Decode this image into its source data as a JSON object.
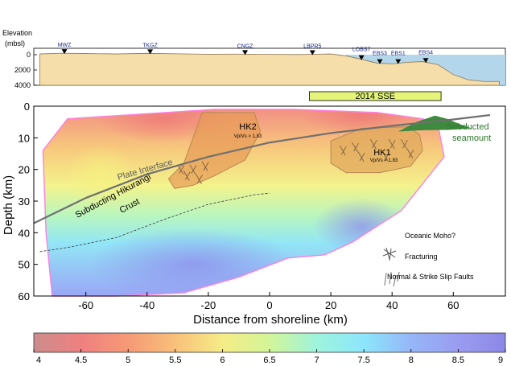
{
  "chart_data": [
    {
      "type": "area",
      "panel": "elevation-profile",
      "ylabel": "Elevation\n(mbsl)",
      "yticks": [
        0,
        2000,
        4000
      ],
      "ylim": [
        4200,
        -500
      ],
      "stations": [
        {
          "name": "MWZ",
          "x": -67
        },
        {
          "name": "TKGZ",
          "x": -39
        },
        {
          "name": "CNGZ",
          "x": -8
        },
        {
          "name": "LBPR5",
          "x": 14
        },
        {
          "name": "LOBS7",
          "x": 30
        },
        {
          "name": "EBS3",
          "x": 36
        },
        {
          "name": "EBS1",
          "x": 42
        },
        {
          "name": "EBS4",
          "x": 51
        }
      ],
      "profile": {
        "x": [
          -75,
          -68,
          -60,
          -50,
          -40,
          -30,
          -20,
          -10,
          0,
          10,
          20,
          25,
          30,
          35,
          40,
          45,
          50,
          55,
          60,
          65,
          70,
          75
        ],
        "y": [
          -100,
          -200,
          -150,
          -100,
          -180,
          -120,
          -60,
          -80,
          -40,
          -20,
          -100,
          150,
          600,
          1100,
          1200,
          1000,
          900,
          1300,
          2600,
          3300,
          3500,
          3500
        ]
      },
      "sse_label": "2014 SSE",
      "sse_range": [
        13,
        56
      ]
    },
    {
      "type": "heatmap",
      "panel": "vp-vs-cross-section",
      "xlabel": "Distance from shoreline (km)",
      "ylabel": "Depth (km)",
      "xticks": [
        -60,
        -40,
        -20,
        0,
        20,
        40,
        60
      ],
      "yticks": [
        0,
        10,
        20,
        30,
        40,
        50,
        60
      ],
      "xlim": [
        -77,
        77
      ],
      "ylim": [
        60,
        0
      ],
      "annotations": {
        "hk2": "HK2",
        "hk2_sub": "Vp/Vs > 1.83",
        "hk1": "HK1",
        "hk1_sub": "Vp/Vs > 1.83",
        "plate_interface": "Plate  Interface",
        "subducting_crust_1": "Subducting Hikurangi",
        "subducting_crust_2": "Crust",
        "seamount_1": "Subducted",
        "seamount_2": "seamount",
        "legend_moho": "Oceanic Moho?",
        "legend_fracturing": "Fracturing",
        "legend_faults": "Normal & Strike Slip Faults"
      },
      "plate_interface": {
        "x": [
          -77,
          -60,
          -40,
          -20,
          0,
          20,
          40,
          60,
          72
        ],
        "y": [
          37,
          29,
          21.5,
          16,
          11.5,
          8.5,
          6.2,
          4.2,
          2.8
        ]
      },
      "oceanic_moho": {
        "x": [
          -75,
          -65,
          -50,
          -35,
          -20,
          -5,
          0
        ],
        "y": [
          46,
          44.5,
          41.5,
          36,
          31,
          28,
          27.5
        ]
      }
    },
    {
      "type": "colorbar",
      "panel": "vp-vs-colorbar",
      "ticks": [
        4,
        4.5,
        5,
        5.5,
        6,
        6.5,
        7,
        7.5,
        8,
        8.5,
        9
      ],
      "range": [
        4,
        9
      ]
    }
  ],
  "colors": {
    "land_fill": "#f6deaa",
    "sea_fill": "#b4d6ea",
    "sse_box": "#e4f57a",
    "outline": "#ff7ee0",
    "seamount": "#3e8a3e",
    "plate": "#707070"
  }
}
